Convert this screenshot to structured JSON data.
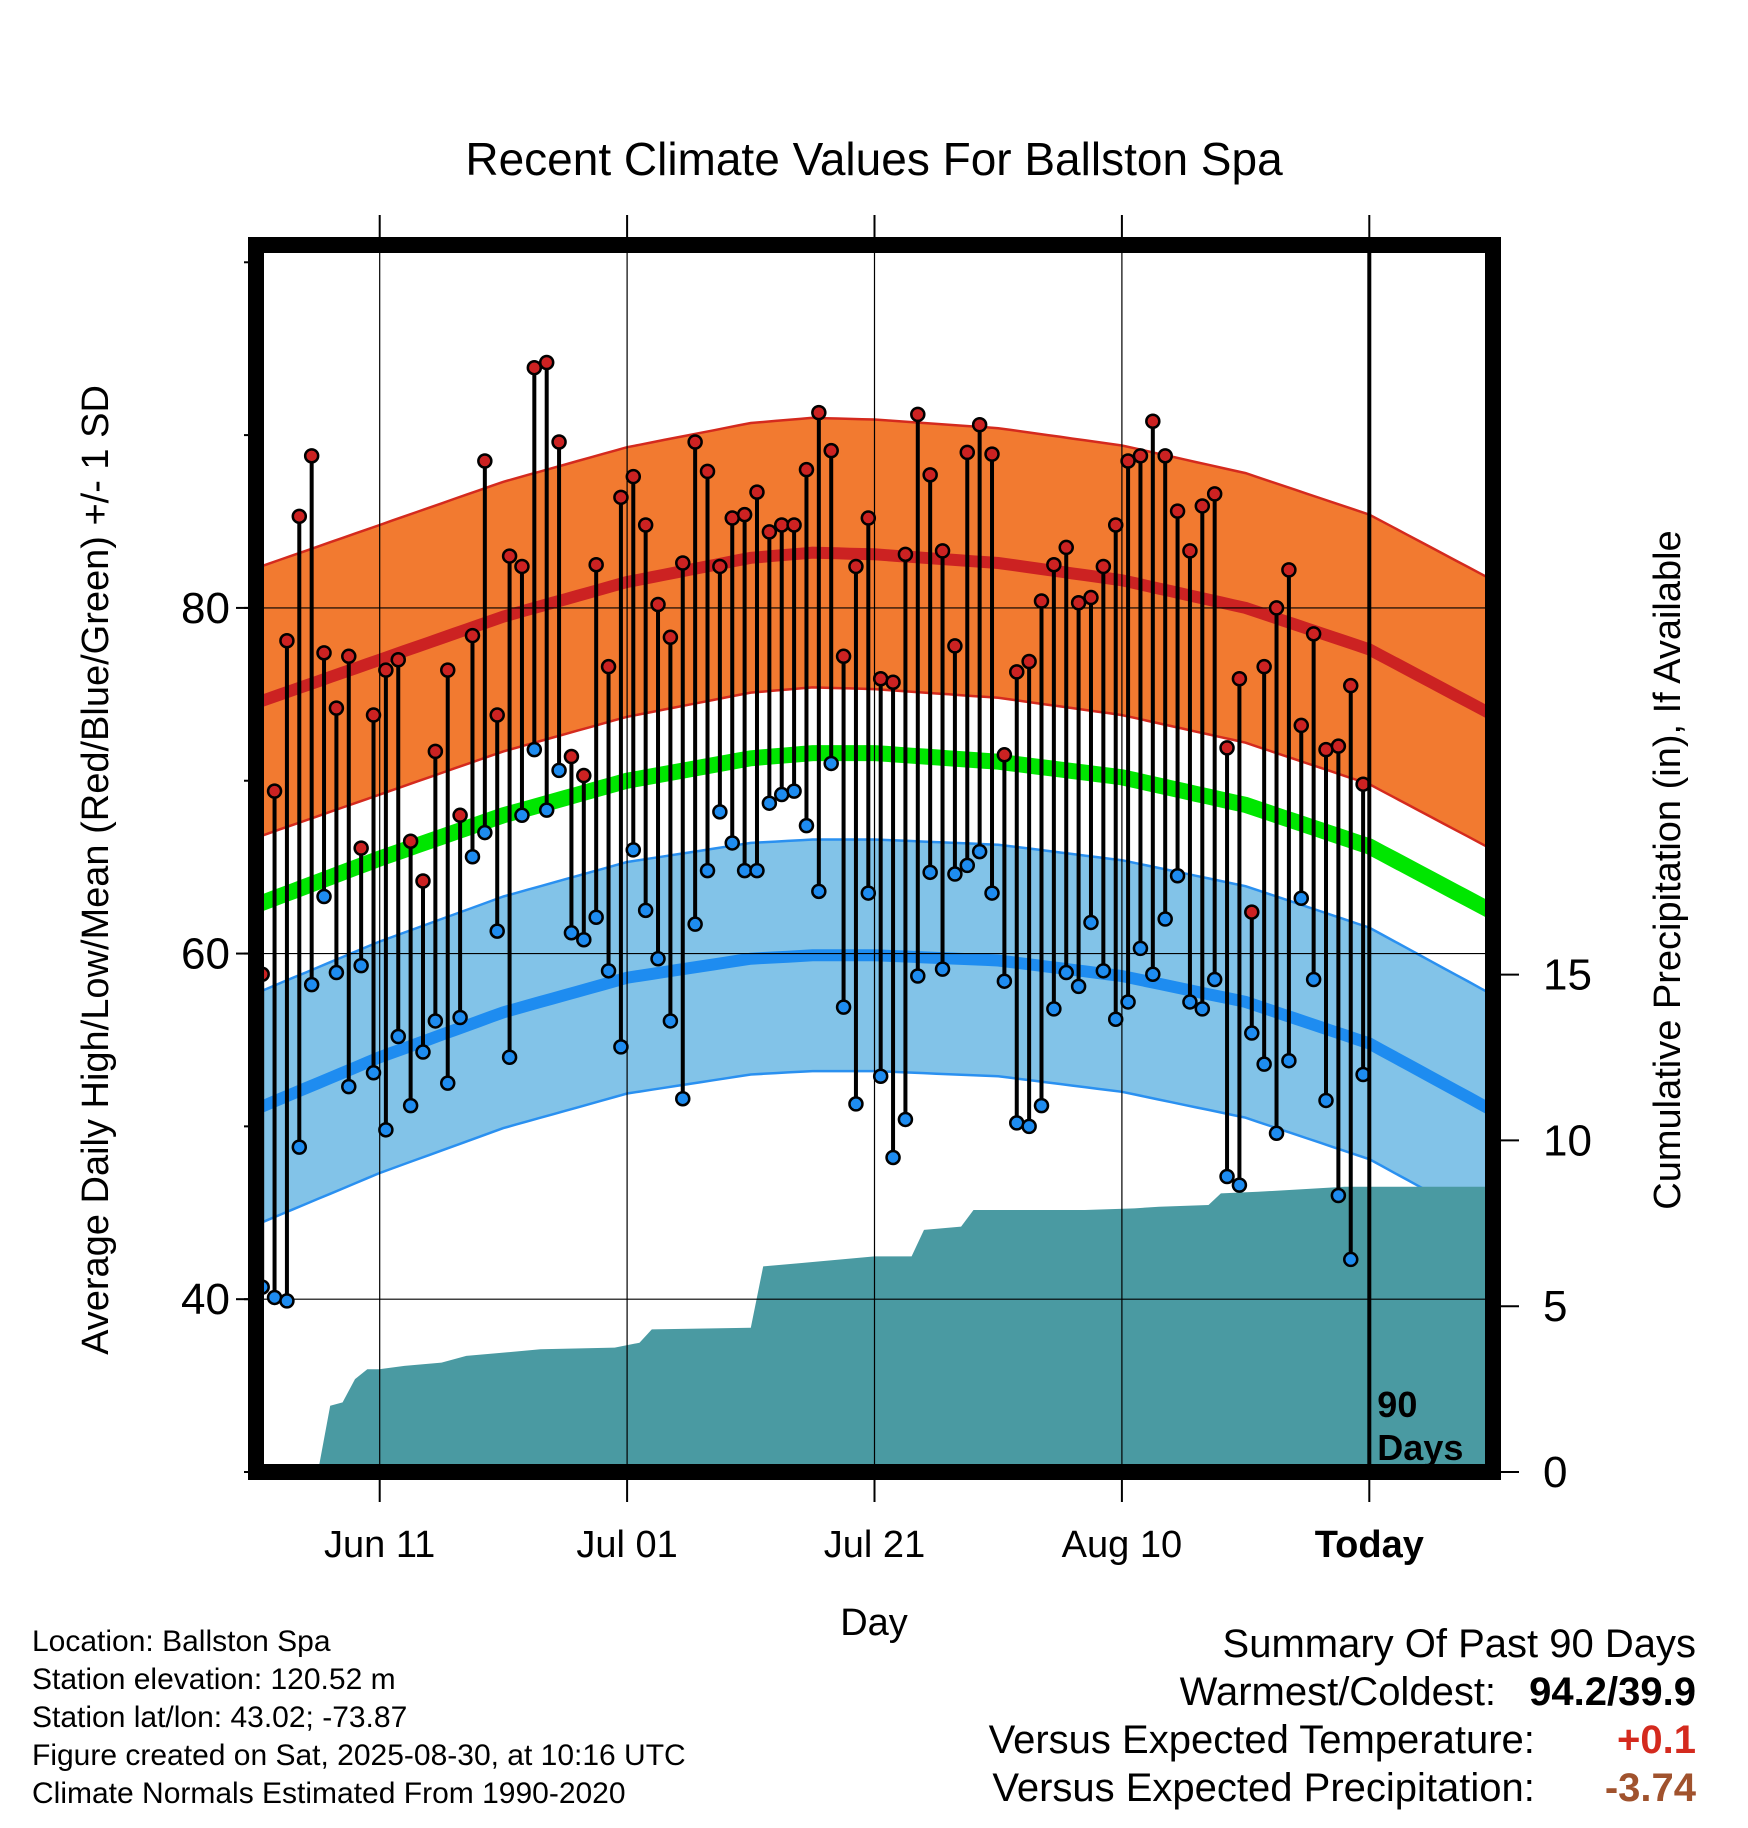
{
  "chart_data": {
    "type": "line",
    "title": "Recent Climate Values For Ballston Spa",
    "xlabel": "Day",
    "ylabel": "Average Daily High/Low/Mean (Red/Blue/Green) +/- 1 SD",
    "y2label": "Cumulative Precipitation (in), If Available",
    "ylim": [
      30,
      101
    ],
    "y2lim": [
      0,
      37
    ],
    "xlim": [
      0,
      100
    ],
    "x_ticks": [
      {
        "x": 10,
        "label": "Jun 11"
      },
      {
        "x": 30,
        "label": "Jul 01"
      },
      {
        "x": 50,
        "label": "Jul 21"
      },
      {
        "x": 70,
        "label": "Aug 10"
      },
      {
        "x": 90,
        "label": "Today"
      }
    ],
    "y_ticks": [
      40,
      60,
      80
    ],
    "y2_ticks": [
      0,
      5,
      10,
      15
    ],
    "today_x": 90,
    "today_label_line1": "90",
    "today_label_line2": "Days",
    "grid": true,
    "colors": {
      "high": "#cc2222",
      "high_band": "#f27a30",
      "high_band_edge": "#d42a1e",
      "low": "#1e8cf0",
      "low_band": "#82c3e8",
      "low_band_edge": "#2a90f0",
      "mean": "#00e600",
      "precip": "#4a9aa2"
    },
    "normals": {
      "x": [
        0,
        10,
        20,
        30,
        40,
        45,
        50,
        60,
        70,
        80,
        90,
        100
      ],
      "high": [
        74.5,
        77.0,
        79.5,
        81.5,
        82.9,
        83.2,
        83.1,
        82.6,
        81.6,
        80.0,
        77.6,
        73.8
      ],
      "high_sd": 7.8,
      "low": [
        51.0,
        54.0,
        56.6,
        58.6,
        59.7,
        59.9,
        59.9,
        59.6,
        58.7,
        57.2,
        54.8,
        50.9
      ],
      "low_sd": 6.7,
      "mean": [
        62.8,
        65.5,
        68.0,
        70.0,
        71.3,
        71.6,
        71.6,
        71.1,
        70.2,
        68.6,
        66.2,
        62.4
      ]
    },
    "daily": [
      {
        "x": 0,
        "high": 58.8,
        "low": 40.7
      },
      {
        "x": 1,
        "high": 69.4,
        "low": 40.1
      },
      {
        "x": 2,
        "high": 78.1,
        "low": 39.9
      },
      {
        "x": 3,
        "high": 85.3,
        "low": 48.8
      },
      {
        "x": 4,
        "high": 88.8,
        "low": 58.2
      },
      {
        "x": 5,
        "high": 77.4,
        "low": 63.3
      },
      {
        "x": 6,
        "high": 74.2,
        "low": 58.9
      },
      {
        "x": 7,
        "high": 77.2,
        "low": 52.3
      },
      {
        "x": 8,
        "high": 66.1,
        "low": 59.3
      },
      {
        "x": 9,
        "high": 73.8,
        "low": 53.1
      },
      {
        "x": 10,
        "high": 76.4,
        "low": 49.8
      },
      {
        "x": 11,
        "high": 77.0,
        "low": 55.2
      },
      {
        "x": 12,
        "high": 66.5,
        "low": 51.2
      },
      {
        "x": 13,
        "high": 64.2,
        "low": 54.3
      },
      {
        "x": 14,
        "high": 71.7,
        "low": 56.1
      },
      {
        "x": 15,
        "high": 76.4,
        "low": 52.5
      },
      {
        "x": 16,
        "high": 68.0,
        "low": 56.3
      },
      {
        "x": 17,
        "high": 78.4,
        "low": 65.6
      },
      {
        "x": 18,
        "high": 88.5,
        "low": 67.0
      },
      {
        "x": 19,
        "high": 73.8,
        "low": 61.3
      },
      {
        "x": 20,
        "high": 83.0,
        "low": 54.0
      },
      {
        "x": 21,
        "high": 82.4,
        "low": 68.0
      },
      {
        "x": 22,
        "high": 93.9,
        "low": 71.8
      },
      {
        "x": 23,
        "high": 94.2,
        "low": 68.3
      },
      {
        "x": 24,
        "high": 89.6,
        "low": 70.6
      },
      {
        "x": 25,
        "high": 71.4,
        "low": 61.2
      },
      {
        "x": 26,
        "high": 70.3,
        "low": 60.8
      },
      {
        "x": 27,
        "high": 82.5,
        "low": 62.1
      },
      {
        "x": 28,
        "high": 76.6,
        "low": 59.0
      },
      {
        "x": 29,
        "high": 86.4,
        "low": 54.6
      },
      {
        "x": 30,
        "high": 87.6,
        "low": 66.0
      },
      {
        "x": 31,
        "high": 84.8,
        "low": 62.5
      },
      {
        "x": 32,
        "high": 80.2,
        "low": 59.7
      },
      {
        "x": 33,
        "high": 78.3,
        "low": 56.1
      },
      {
        "x": 34,
        "high": 82.6,
        "low": 51.6
      },
      {
        "x": 35,
        "high": 89.6,
        "low": 61.7
      },
      {
        "x": 36,
        "high": 87.9,
        "low": 64.8
      },
      {
        "x": 37,
        "high": 82.4,
        "low": 68.2
      },
      {
        "x": 38,
        "high": 85.2,
        "low": 66.4
      },
      {
        "x": 39,
        "high": 85.4,
        "low": 64.8
      },
      {
        "x": 40,
        "high": 86.7,
        "low": 64.8
      },
      {
        "x": 41,
        "high": 84.4,
        "low": 68.7
      },
      {
        "x": 42,
        "high": 84.8,
        "low": 69.2
      },
      {
        "x": 43,
        "high": 84.8,
        "low": 69.4
      },
      {
        "x": 44,
        "high": 88.0,
        "low": 67.4
      },
      {
        "x": 45,
        "high": 91.3,
        "low": 63.6
      },
      {
        "x": 46,
        "high": 89.1,
        "low": 71.0
      },
      {
        "x": 47,
        "high": 77.2,
        "low": 56.9
      },
      {
        "x": 48,
        "high": 82.4,
        "low": 51.3
      },
      {
        "x": 49,
        "high": 85.2,
        "low": 63.5
      },
      {
        "x": 50,
        "high": 75.9,
        "low": 52.9
      },
      {
        "x": 51,
        "high": 75.7,
        "low": 48.2
      },
      {
        "x": 52,
        "high": 83.1,
        "low": 50.4
      },
      {
        "x": 53,
        "high": 91.2,
        "low": 58.7
      },
      {
        "x": 54,
        "high": 87.7,
        "low": 64.7
      },
      {
        "x": 55,
        "high": 83.3,
        "low": 59.1
      },
      {
        "x": 56,
        "high": 77.8,
        "low": 64.6
      },
      {
        "x": 57,
        "high": 89.0,
        "low": 65.1
      },
      {
        "x": 58,
        "high": 90.6,
        "low": 65.9
      },
      {
        "x": 59,
        "high": 88.9,
        "low": 63.5
      },
      {
        "x": 60,
        "high": 71.5,
        "low": 58.4
      },
      {
        "x": 61,
        "high": 76.3,
        "low": 50.2
      },
      {
        "x": 62,
        "high": 76.9,
        "low": 50.0
      },
      {
        "x": 63,
        "high": 80.4,
        "low": 51.2
      },
      {
        "x": 64,
        "high": 82.5,
        "low": 56.8
      },
      {
        "x": 65,
        "high": 83.5,
        "low": 58.9
      },
      {
        "x": 66,
        "high": 80.3,
        "low": 58.1
      },
      {
        "x": 67,
        "high": 80.6,
        "low": 61.8
      },
      {
        "x": 68,
        "high": 82.4,
        "low": 59.0
      },
      {
        "x": 69,
        "high": 84.8,
        "low": 56.2
      },
      {
        "x": 70,
        "high": 88.5,
        "low": 57.2
      },
      {
        "x": 71,
        "high": 88.8,
        "low": 60.3
      },
      {
        "x": 72,
        "high": 90.8,
        "low": 58.8
      },
      {
        "x": 73,
        "high": 88.8,
        "low": 62.0
      },
      {
        "x": 74,
        "high": 85.6,
        "low": 64.5
      },
      {
        "x": 75,
        "high": 83.3,
        "low": 57.2
      },
      {
        "x": 76,
        "high": 85.9,
        "low": 56.8
      },
      {
        "x": 77,
        "high": 86.6,
        "low": 58.5
      },
      {
        "x": 78,
        "high": 71.9,
        "low": 47.1
      },
      {
        "x": 79,
        "high": 75.9,
        "low": 46.6
      },
      {
        "x": 80,
        "high": 62.4,
        "low": 55.4
      },
      {
        "x": 81,
        "high": 76.6,
        "low": 53.6
      },
      {
        "x": 82,
        "high": 80.0,
        "low": 49.6
      },
      {
        "x": 83,
        "high": 82.2,
        "low": 53.8
      },
      {
        "x": 84,
        "high": 73.2,
        "low": 63.2
      },
      {
        "x": 85,
        "high": 78.5,
        "low": 58.5
      },
      {
        "x": 86,
        "high": 71.8,
        "low": 51.5
      },
      {
        "x": 87,
        "high": 72.0,
        "low": 46.0
      },
      {
        "x": 88,
        "high": 75.5,
        "low": 42.3
      },
      {
        "x": 89,
        "high": 69.8,
        "low": 53.0
      }
    ],
    "precip": [
      [
        0,
        0
      ],
      [
        5,
        0
      ],
      [
        6,
        2.0
      ],
      [
        7,
        2.1
      ],
      [
        8,
        2.8
      ],
      [
        9,
        3.1
      ],
      [
        10,
        3.1
      ],
      [
        12,
        3.2
      ],
      [
        15,
        3.3
      ],
      [
        17,
        3.5
      ],
      [
        20,
        3.6
      ],
      [
        23,
        3.7
      ],
      [
        29,
        3.75
      ],
      [
        31,
        3.9
      ],
      [
        32,
        4.3
      ],
      [
        40,
        4.35
      ],
      [
        41,
        6.2
      ],
      [
        44,
        6.3
      ],
      [
        50,
        6.5
      ],
      [
        53,
        6.5
      ],
      [
        54,
        7.3
      ],
      [
        57,
        7.4
      ],
      [
        58,
        7.9
      ],
      [
        67,
        7.9
      ],
      [
        71,
        7.95
      ],
      [
        73,
        8.0
      ],
      [
        77,
        8.05
      ],
      [
        78,
        8.4
      ],
      [
        81,
        8.45
      ],
      [
        88,
        8.6
      ],
      [
        100,
        8.6
      ]
    ]
  },
  "info": {
    "location": "Location: Ballston Spa",
    "elevation": "Station elevation: 120.52 m",
    "latlon": "Station lat/lon: 43.02; -73.87",
    "created": "Figure created on Sat, 2025-08-30, at 10:16 UTC",
    "normals": "Climate Normals Estimated From 1990-2020"
  },
  "summary": {
    "heading": "Summary Of Past 90 Days",
    "warm_cold_label": "Warmest/Coldest:",
    "warm_cold_value": "94.2/39.9",
    "temp_label": "Versus Expected Temperature:",
    "temp_value": "+0.1",
    "temp_color": "#d42a1e",
    "precip_label": "Versus Expected Precipitation:",
    "precip_value": "-3.74",
    "precip_color": "#a0522d"
  }
}
